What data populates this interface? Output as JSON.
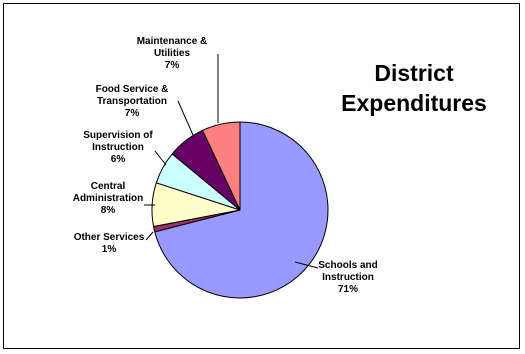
{
  "chart_data": {
    "type": "pie",
    "title_lines": [
      "District",
      "Expenditures"
    ],
    "slices": [
      {
        "name": "Schools and Instruction",
        "label_lines": [
          "Schools and",
          "Instruction"
        ],
        "pct_label": "71%",
        "value": 71,
        "color": "#9999ff"
      },
      {
        "name": "Other Services",
        "label_lines": [
          "Other Services"
        ],
        "pct_label": "1%",
        "value": 1,
        "color": "#993366"
      },
      {
        "name": "Central Administration",
        "label_lines": [
          "Central",
          "Administration"
        ],
        "pct_label": "8%",
        "value": 8,
        "color": "#ffffcc"
      },
      {
        "name": "Supervision of Instruction",
        "label_lines": [
          "Supervision of",
          "Instruction"
        ],
        "pct_label": "6%",
        "value": 6,
        "color": "#ccffff"
      },
      {
        "name": "Food Service & Transportation",
        "label_lines": [
          "Food Service &",
          "Transportation"
        ],
        "pct_label": "7%",
        "value": 7,
        "color": "#660066"
      },
      {
        "name": "Maintenance & Utilities",
        "label_lines": [
          "Maintenance &",
          "Utilities"
        ],
        "pct_label": "7%",
        "value": 7,
        "color": "#ff8080"
      }
    ]
  }
}
